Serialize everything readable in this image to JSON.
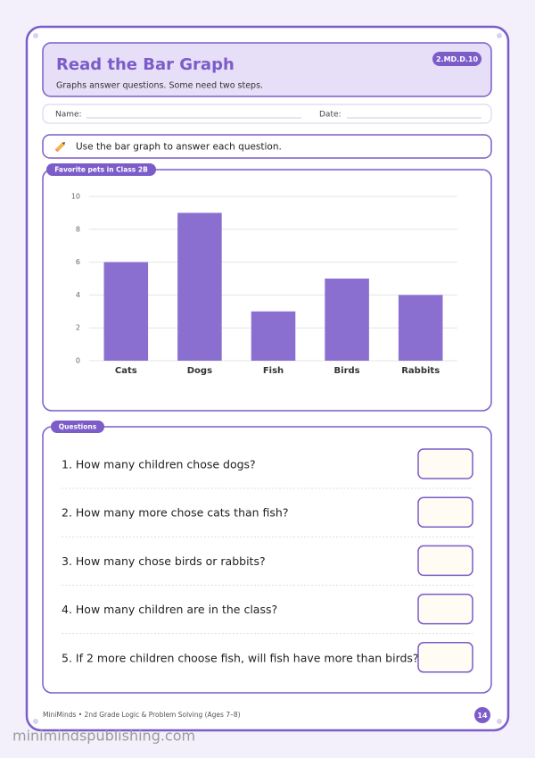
{
  "header": {
    "title": "Read the Bar Graph",
    "standard": "2.MD.D.10",
    "subtitle": "Graphs answer questions. Some need two steps."
  },
  "fields": {
    "name": "Name:",
    "date": "Date:"
  },
  "instruction": "Use the bar graph to answer each question.",
  "chart_data": {
    "type": "bar",
    "title": "Favorite pets in Class 2B",
    "categories": [
      "Cats",
      "Dogs",
      "Fish",
      "Birds",
      "Rabbits"
    ],
    "values": [
      6,
      9,
      3,
      5,
      4
    ],
    "color": "#8b6fd0",
    "ylim": [
      0,
      10
    ],
    "yticks": [
      0,
      2,
      4,
      6,
      8,
      10
    ],
    "grid": true
  },
  "questions": {
    "title": "Questions",
    "items": [
      "1. How many children chose dogs?",
      "2. How many more chose cats than fish?",
      "3. How many chose birds or rabbits?",
      "4. How many children are in the class?",
      "5. If 2 more children choose fish, will fish have more than birds?"
    ]
  },
  "footer": {
    "text": "MiniMinds • 2nd Grade Logic & Problem Solving (Ages 7–8)",
    "page": "14",
    "watermark": "minimindspublishing.com"
  }
}
